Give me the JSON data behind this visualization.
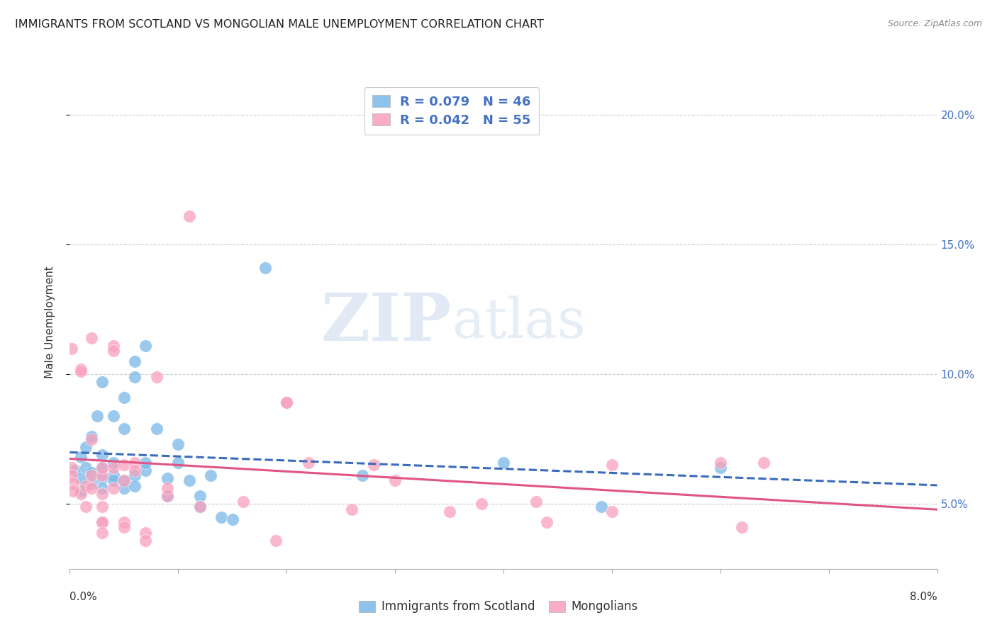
{
  "title": "IMMIGRANTS FROM SCOTLAND VS MONGOLIAN MALE UNEMPLOYMENT CORRELATION CHART",
  "source": "Source: ZipAtlas.com",
  "ylabel": "Male Unemployment",
  "xlim": [
    0.0,
    0.08
  ],
  "ylim": [
    0.025,
    0.215
  ],
  "yticks": [
    0.05,
    0.1,
    0.15,
    0.2
  ],
  "ytick_labels": [
    "5.0%",
    "10.0%",
    "15.0%",
    "20.0%"
  ],
  "xticks": [
    0.0,
    0.01,
    0.02,
    0.03,
    0.04,
    0.05,
    0.06,
    0.07,
    0.08
  ],
  "blue_color": "#7ab8e8",
  "pink_color": "#f9a0bc",
  "blue_line_color": "#3a6bbd",
  "pink_line_color": "#e05585",
  "watermark_zip": "ZIP",
  "watermark_atlas": "atlas",
  "scatter_blue": [
    [
      0.0005,
      0.063
    ],
    [
      0.001,
      0.06
    ],
    [
      0.001,
      0.055
    ],
    [
      0.001,
      0.068
    ],
    [
      0.0015,
      0.072
    ],
    [
      0.0015,
      0.064
    ],
    [
      0.002,
      0.062
    ],
    [
      0.002,
      0.058
    ],
    [
      0.002,
      0.076
    ],
    [
      0.0025,
      0.084
    ],
    [
      0.003,
      0.06
    ],
    [
      0.003,
      0.064
    ],
    [
      0.003,
      0.056
    ],
    [
      0.003,
      0.069
    ],
    [
      0.003,
      0.097
    ],
    [
      0.004,
      0.066
    ],
    [
      0.004,
      0.061
    ],
    [
      0.004,
      0.059
    ],
    [
      0.004,
      0.084
    ],
    [
      0.005,
      0.091
    ],
    [
      0.005,
      0.079
    ],
    [
      0.005,
      0.059
    ],
    [
      0.005,
      0.056
    ],
    [
      0.006,
      0.105
    ],
    [
      0.006,
      0.099
    ],
    [
      0.006,
      0.061
    ],
    [
      0.006,
      0.057
    ],
    [
      0.007,
      0.063
    ],
    [
      0.007,
      0.066
    ],
    [
      0.007,
      0.111
    ],
    [
      0.008,
      0.079
    ],
    [
      0.009,
      0.06
    ],
    [
      0.009,
      0.053
    ],
    [
      0.01,
      0.066
    ],
    [
      0.01,
      0.073
    ],
    [
      0.011,
      0.059
    ],
    [
      0.012,
      0.053
    ],
    [
      0.012,
      0.049
    ],
    [
      0.013,
      0.061
    ],
    [
      0.014,
      0.045
    ],
    [
      0.015,
      0.044
    ],
    [
      0.018,
      0.141
    ],
    [
      0.027,
      0.061
    ],
    [
      0.04,
      0.066
    ],
    [
      0.049,
      0.049
    ],
    [
      0.06,
      0.064
    ]
  ],
  "scatter_pink": [
    [
      0.0002,
      0.064
    ],
    [
      0.0002,
      0.061
    ],
    [
      0.0002,
      0.11
    ],
    [
      0.001,
      0.102
    ],
    [
      0.001,
      0.101
    ],
    [
      0.001,
      0.054
    ],
    [
      0.0015,
      0.057
    ],
    [
      0.0015,
      0.049
    ],
    [
      0.002,
      0.075
    ],
    [
      0.002,
      0.114
    ],
    [
      0.002,
      0.056
    ],
    [
      0.002,
      0.061
    ],
    [
      0.003,
      0.061
    ],
    [
      0.003,
      0.054
    ],
    [
      0.003,
      0.049
    ],
    [
      0.003,
      0.043
    ],
    [
      0.003,
      0.043
    ],
    [
      0.003,
      0.039
    ],
    [
      0.003,
      0.064
    ],
    [
      0.004,
      0.111
    ],
    [
      0.004,
      0.109
    ],
    [
      0.004,
      0.064
    ],
    [
      0.004,
      0.056
    ],
    [
      0.005,
      0.059
    ],
    [
      0.005,
      0.043
    ],
    [
      0.005,
      0.041
    ],
    [
      0.005,
      0.065
    ],
    [
      0.006,
      0.066
    ],
    [
      0.006,
      0.063
    ],
    [
      0.007,
      0.039
    ],
    [
      0.007,
      0.036
    ],
    [
      0.008,
      0.099
    ],
    [
      0.009,
      0.053
    ],
    [
      0.009,
      0.056
    ],
    [
      0.011,
      0.161
    ],
    [
      0.012,
      0.049
    ],
    [
      0.016,
      0.051
    ],
    [
      0.02,
      0.089
    ],
    [
      0.02,
      0.089
    ],
    [
      0.022,
      0.066
    ],
    [
      0.026,
      0.048
    ],
    [
      0.03,
      0.059
    ],
    [
      0.035,
      0.047
    ],
    [
      0.043,
      0.051
    ],
    [
      0.05,
      0.047
    ],
    [
      0.05,
      0.065
    ],
    [
      0.06,
      0.066
    ],
    [
      0.062,
      0.041
    ],
    [
      0.064,
      0.066
    ],
    [
      0.0003,
      0.058
    ],
    [
      0.0003,
      0.055
    ],
    [
      0.019,
      0.036
    ],
    [
      0.028,
      0.065
    ],
    [
      0.038,
      0.05
    ],
    [
      0.044,
      0.043
    ]
  ]
}
